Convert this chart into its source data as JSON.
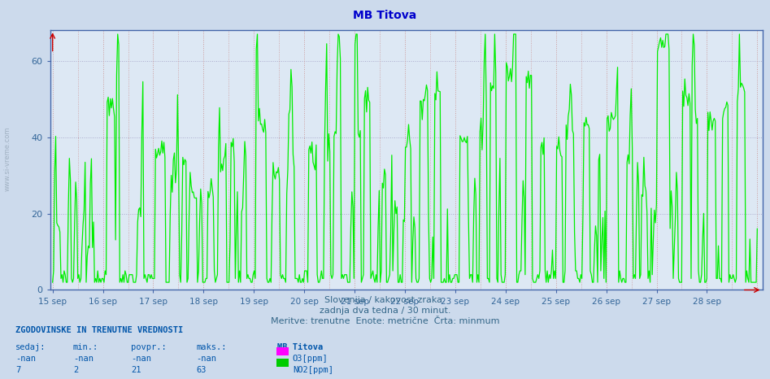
{
  "title": "MB Titova",
  "title_color": "#0000cc",
  "title_fontsize": 10,
  "background_color": "#ccdaec",
  "plot_bg_color": "#dde8f4",
  "ylim": [
    0,
    68
  ],
  "yticks": [
    0,
    20,
    40,
    60
  ],
  "x_tick_labels": [
    "15 sep",
    "16 sep",
    "17 sep",
    "18 sep",
    "19 sep",
    "20 sep",
    "21 sep",
    "22 sep",
    "23 sep",
    "24 sep",
    "25 sep",
    "26 sep",
    "27 sep",
    "28 sep"
  ],
  "xlabel_line1": "Slovenija / kakovost zraka.",
  "xlabel_line2": "zadnja dva tedna / 30 minut.",
  "xlabel_line3": "Meritve: trenutne  Enote: metrične  Črta: minmum",
  "xlabel_color": "#336688",
  "xlabel_fontsize": 8,
  "grid_color_h": "#aaaacc",
  "grid_color_v": "#cc9999",
  "axis_color": "#4466aa",
  "tick_color": "#336699",
  "line_no2_color": "#00ee00",
  "line_o3_color": "#ff00ff",
  "line_width": 0.9,
  "info_text_color": "#0055aa",
  "info_bold_text": "ZGODOVINSKE IN TRENUTNE VREDNOSTI",
  "legend_station": "MB Titova",
  "legend_o3": "O3[ppm]",
  "legend_no2": "NO2[ppm]",
  "legend_o3_color": "#ff00ff",
  "legend_no2_color": "#00cc00",
  "table_headers": [
    "sedaj:",
    "min.:",
    "povpr.:",
    "maks.:"
  ],
  "table_row1": [
    "-nan",
    "-nan",
    "-nan",
    "-nan"
  ],
  "table_row2": [
    "7",
    "2",
    "21",
    "63"
  ],
  "left_watermark": "www.si-vreme.com"
}
